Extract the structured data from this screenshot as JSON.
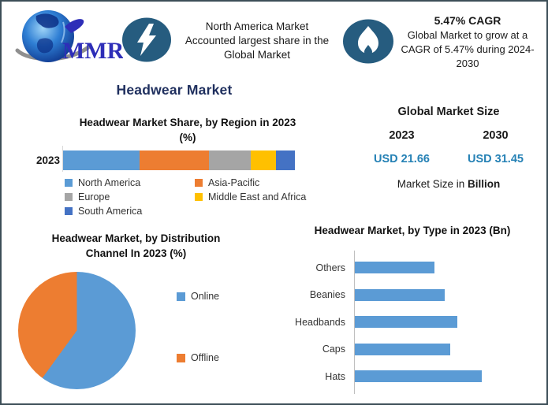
{
  "page": {
    "border_color": "#3c4e57",
    "background": "#ffffff",
    "accent_navy": "#1f2f5e",
    "badge_color": "#265c7f"
  },
  "header": {
    "logo_text": "MMR",
    "highlight1": {
      "icon": "lightning-icon",
      "lines": [
        "North America Market",
        "Accounted largest share in the",
        "Global Market"
      ]
    },
    "highlight2": {
      "icon": "flame-icon",
      "title": "5.47% CAGR",
      "lines": [
        "Global Market to grow at a",
        "CAGR of 5.47% during 2024-",
        "2030"
      ]
    }
  },
  "main_title": "Headwear Market",
  "region_section": {
    "title_line1": "Headwear Market Share, by Region in 2023",
    "title_line2": "(%)",
    "category_label": "2023"
  },
  "market_size": {
    "title": "Global Market Size",
    "years": [
      "2023",
      "2030"
    ],
    "values": [
      "USD 21.66",
      "USD 31.45"
    ],
    "caption_prefix": "Market Size in ",
    "caption_bold": "Billion",
    "value_color": "#2581b5"
  },
  "pie_section": {
    "title_line1": "Headwear Market, by Distribution",
    "title_line2": "Channel In 2023 (%)"
  },
  "type_section": {
    "title": "Headwear Market, by Type in 2023 (Bn)"
  },
  "chart_data": [
    {
      "id": "region-share",
      "type": "bar",
      "subtype": "stacked-horizontal",
      "title": "Headwear Market Share, by Region in 2023 (%)",
      "categories": [
        "2023"
      ],
      "series": [
        {
          "name": "North America",
          "values": [
            33
          ],
          "color": "#5b9bd5"
        },
        {
          "name": "Asia-Pacific",
          "values": [
            30
          ],
          "color": "#ed7d31"
        },
        {
          "name": "Europe",
          "values": [
            18
          ],
          "color": "#a5a5a5"
        },
        {
          "name": "Middle East and Africa",
          "values": [
            11
          ],
          "color": "#ffc000"
        },
        {
          "name": "South America",
          "values": [
            8
          ],
          "color": "#4472c4"
        }
      ],
      "legend_position": "bottom",
      "note": "no data labels shown; segment percentages estimated from bar lengths"
    },
    {
      "id": "distribution-channel",
      "type": "pie",
      "title": "Headwear Market, by Distribution Channel In 2023 (%)",
      "slices": [
        {
          "name": "Online",
          "value": 60,
          "color": "#5b9bd5"
        },
        {
          "name": "Offline",
          "value": 40,
          "color": "#ed7d31"
        }
      ],
      "legend_position": "right",
      "note": "no data labels shown; values estimated from slice angles"
    },
    {
      "id": "by-type",
      "type": "bar",
      "subtype": "horizontal",
      "title": "Headwear Market, by Type in 2023 (Bn)",
      "categories": [
        "Others",
        "Beanies",
        "Headbands",
        "Caps",
        "Hats"
      ],
      "values": [
        0.63,
        0.71,
        0.81,
        0.75,
        1.0
      ],
      "color": "#5b9bd5",
      "xlabel": "",
      "ylabel": "",
      "note": "no axis tick labels shown; values are relative bar lengths (Hats = 1.0)"
    }
  ]
}
